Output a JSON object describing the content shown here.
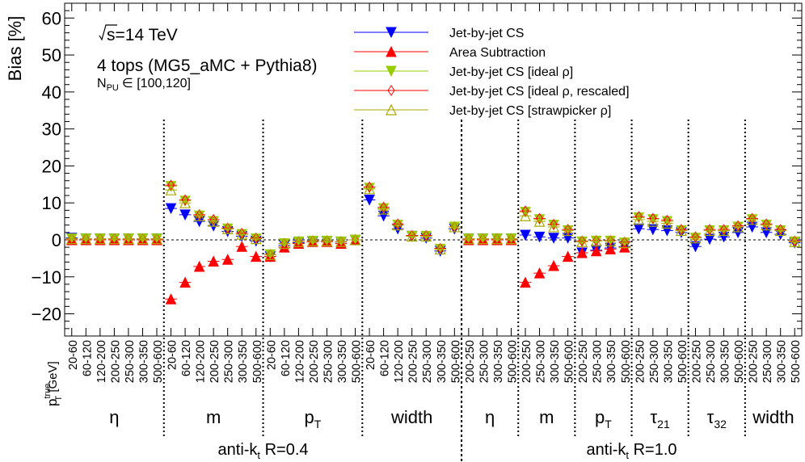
{
  "chart_data": {
    "type": "scatter",
    "ylabel": "Bias [%]",
    "y_axis_label_main": "Bias [%]",
    "ylim": [
      -26,
      64
    ],
    "y_ticks": [
      -20,
      -10,
      0,
      10,
      20,
      30,
      40,
      50,
      60
    ],
    "x_axis_label": {
      "main": "p",
      "sub": "T",
      "sup": "true",
      "unit": " [GeV]"
    },
    "annotations": {
      "sqrt_s": "s=14 TeV",
      "process": "4 tops (MG5_aMC + Pythia8)",
      "pileup_prefix": "N",
      "pileup_sub": "PU",
      "pileup_range": "∈ [100,120]"
    },
    "groups": [
      {
        "label": "η",
        "sub": "",
        "jet": "R04",
        "bins": [
          "20-60",
          "60-120",
          "120-200",
          "200-250",
          "250-300",
          "300-350",
          "500-600"
        ]
      },
      {
        "label": "m",
        "sub": "",
        "jet": "R04",
        "bins": [
          "20-60",
          "60-120",
          "120-200",
          "200-250",
          "250-300",
          "300-350",
          "500-600"
        ]
      },
      {
        "label": "p",
        "sub": "T",
        "jet": "R04",
        "bins": [
          "20-60",
          "60-120",
          "120-200",
          "200-250",
          "250-300",
          "300-350",
          "500-600"
        ]
      },
      {
        "label": "width",
        "sub": "",
        "jet": "R04",
        "bins": [
          "20-60",
          "60-120",
          "120-200",
          "200-250",
          "250-300",
          "300-350",
          "500-600"
        ]
      },
      {
        "label": "η",
        "sub": "",
        "jet": "R10",
        "bins": [
          "200-250",
          "250-300",
          "300-350",
          "500-600"
        ]
      },
      {
        "label": "m",
        "sub": "",
        "jet": "R10",
        "bins": [
          "200-250",
          "250-300",
          "300-350",
          "500-600"
        ]
      },
      {
        "label": "p",
        "sub": "T",
        "jet": "R10",
        "bins": [
          "200-250",
          "250-300",
          "300-350",
          "500-600"
        ]
      },
      {
        "label": "τ",
        "sub": "21",
        "jet": "R10",
        "bins": [
          "200-250",
          "250-300",
          "300-350",
          "500-600"
        ]
      },
      {
        "label": "τ",
        "sub": "32",
        "jet": "R10",
        "bins": [
          "200-250",
          "250-300",
          "300-350",
          "500-600"
        ]
      },
      {
        "label": "width",
        "sub": "",
        "jet": "R10",
        "bins": [
          "200-250",
          "250-300",
          "300-350",
          "500-600"
        ]
      }
    ],
    "jet_groups": [
      {
        "id": "R04",
        "prefix": "anti-k",
        "sub": "t",
        "suffix": " R=0.4"
      },
      {
        "id": "R10",
        "prefix": "anti-k",
        "sub": "t",
        "suffix": " R=1.0"
      }
    ],
    "series": [
      {
        "name": "Jet-by-jet CS",
        "color": "#0000ff",
        "marker": "triangle-down-filled",
        "values": [
          0.5,
          0.3,
          0.3,
          0.3,
          0.3,
          0.3,
          0.3,
          8.5,
          6.8,
          5.0,
          3.8,
          2.3,
          1.0,
          -0.3,
          -4.5,
          -1.5,
          -0.8,
          -0.5,
          -0.4,
          -0.6,
          0.0,
          10.8,
          6.5,
          3.0,
          1.0,
          0.5,
          -3.0,
          3.0,
          0.3,
          0.3,
          0.3,
          0.3,
          1.3,
          0.8,
          0.5,
          0.5,
          -3.5,
          -2.8,
          -2.2,
          -1.8,
          3.0,
          2.8,
          2.5,
          2.0,
          -1.8,
          0.2,
          0.8,
          2.0,
          3.5,
          2.0,
          1.5,
          -0.8
        ]
      },
      {
        "name": "Area Subtraction",
        "color": "#ff0000",
        "marker": "triangle-up-filled",
        "values": [
          0.0,
          0.0,
          0.0,
          0.0,
          0.0,
          0.0,
          0.0,
          -16.0,
          -11.5,
          -7.2,
          -5.8,
          -5.3,
          -1.8,
          -4.5,
          -4.5,
          -2.0,
          -1.0,
          -0.5,
          -0.5,
          -1.0,
          0.0,
          null,
          null,
          null,
          null,
          null,
          null,
          null,
          0.0,
          0.0,
          0.0,
          0.0,
          -11.5,
          -9.0,
          -7.0,
          -4.5,
          -3.5,
          -3.0,
          -2.5,
          -2.0,
          null,
          null,
          null,
          null,
          null,
          null,
          null,
          null,
          null,
          null,
          null,
          null
        ]
      },
      {
        "name": "Jet-by-jet CS [ideal ρ]",
        "color": "#99cc00",
        "marker": "triangle-down-filled",
        "values": [
          0.3,
          0.3,
          0.3,
          0.3,
          0.3,
          0.3,
          0.3,
          14.5,
          10.5,
          6.5,
          5.0,
          3.0,
          1.5,
          0.3,
          -4.0,
          -1.0,
          -0.5,
          -0.3,
          -0.3,
          -0.5,
          0.0,
          14.0,
          8.5,
          4.0,
          1.0,
          1.0,
          -2.5,
          3.5,
          0.3,
          0.3,
          0.3,
          0.3,
          7.5,
          5.5,
          4.0,
          2.5,
          -0.5,
          -0.3,
          -0.3,
          -0.8,
          6.0,
          5.5,
          5.0,
          2.5,
          0.5,
          2.5,
          2.5,
          3.5,
          5.5,
          4.0,
          2.5,
          -0.5
        ]
      },
      {
        "name": "Jet-by-jet CS [ideal ρ, rescaled]",
        "color": "#ff0000",
        "marker": "diamond-open",
        "values": [
          0.3,
          0.3,
          0.3,
          0.3,
          0.3,
          0.3,
          0.3,
          14.8,
          10.8,
          6.8,
          5.5,
          3.2,
          1.8,
          0.5,
          -4.0,
          -1.0,
          -0.5,
          -0.3,
          -0.3,
          -0.5,
          0.0,
          14.3,
          8.8,
          4.3,
          1.2,
          1.2,
          -2.3,
          3.5,
          0.3,
          0.3,
          0.3,
          0.3,
          7.8,
          5.8,
          4.2,
          2.8,
          -0.3,
          -0.2,
          -0.2,
          -0.6,
          6.3,
          5.8,
          5.3,
          2.8,
          0.8,
          2.8,
          2.8,
          3.8,
          5.8,
          4.3,
          2.8,
          -0.3
        ]
      },
      {
        "name": "Jet-by-jet CS [strawpicker ρ]",
        "color": "#aaaa00",
        "marker": "triangle-up-open",
        "values": [
          0.3,
          0.3,
          0.3,
          0.3,
          0.3,
          0.3,
          0.3,
          13.5,
          10.0,
          6.5,
          5.0,
          3.0,
          1.5,
          0.3,
          -4.0,
          -1.0,
          -0.5,
          -0.3,
          -0.3,
          -0.5,
          0.0,
          13.8,
          8.3,
          4.0,
          1.0,
          1.0,
          -2.5,
          3.5,
          0.3,
          0.3,
          0.3,
          0.3,
          6.5,
          5.0,
          3.5,
          2.5,
          -0.5,
          -0.3,
          -0.3,
          -0.8,
          5.5,
          5.0,
          4.5,
          2.5,
          0.5,
          2.5,
          2.5,
          3.5,
          5.5,
          4.0,
          2.5,
          -0.5
        ]
      }
    ],
    "grid": false,
    "legend_position": "top-center"
  }
}
